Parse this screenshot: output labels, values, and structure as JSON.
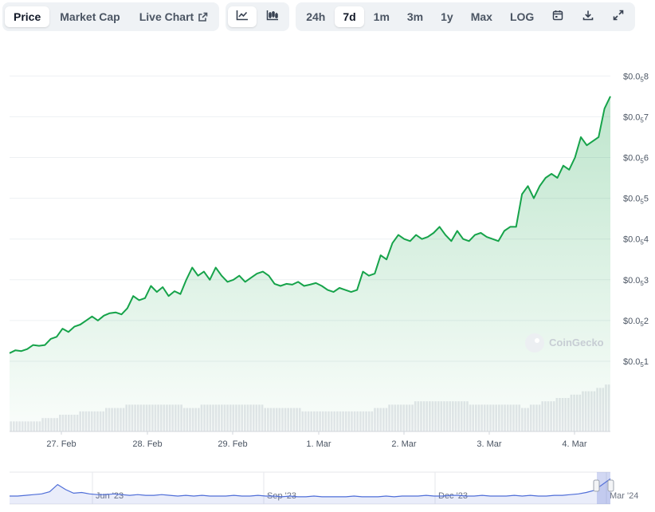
{
  "toolbar": {
    "view_tabs": [
      {
        "label": "Price",
        "active": true
      },
      {
        "label": "Market Cap",
        "active": false
      },
      {
        "label": "Live Chart",
        "active": false
      }
    ],
    "chart_style_icons": [
      "line-chart-icon",
      "candlestick-chart-icon"
    ],
    "ranges": [
      {
        "label": "24h",
        "active": false
      },
      {
        "label": "7d",
        "active": true
      },
      {
        "label": "1m",
        "active": false
      },
      {
        "label": "3m",
        "active": false
      },
      {
        "label": "1y",
        "active": false
      },
      {
        "label": "Max",
        "active": false
      },
      {
        "label": "LOG",
        "active": false
      }
    ],
    "action_icons": [
      "calendar-icon",
      "download-icon",
      "expand-icon"
    ]
  },
  "watermark": "CoinGecko",
  "colors": {
    "line": "#16a34a",
    "area": "#16a34a",
    "volume": "#e5e7eb",
    "navigator": "#4f6ed8"
  },
  "chart_data": {
    "type": "line",
    "title": "",
    "xlabel": "",
    "ylabel": "",
    "y_tick_labels": [
      {
        "prefix": "$0.0",
        "sub": "5",
        "digit": "8",
        "value": 8e-07
      },
      {
        "prefix": "$0.0",
        "sub": "5",
        "digit": "7",
        "value": 7e-07
      },
      {
        "prefix": "$0.0",
        "sub": "5",
        "digit": "6",
        "value": 6e-07
      },
      {
        "prefix": "$0.0",
        "sub": "5",
        "digit": "5",
        "value": 5e-07
      },
      {
        "prefix": "$0.0",
        "sub": "5",
        "digit": "4",
        "value": 4e-07
      },
      {
        "prefix": "$0.0",
        "sub": "5",
        "digit": "3",
        "value": 3e-07
      },
      {
        "prefix": "$0.0",
        "sub": "5",
        "digit": "2",
        "value": 2e-07
      },
      {
        "prefix": "$0.0",
        "sub": "5",
        "digit": "1",
        "value": 1e-07
      }
    ],
    "x_tick_labels": [
      "27. Feb",
      "28. Feb",
      "29. Feb",
      "1. Mar",
      "2. Mar",
      "3. Mar",
      "4. Mar"
    ],
    "x_start": "26. Feb",
    "x_end": "4. Mar",
    "ylim": [
      1e-07,
      8e-07
    ],
    "grid": true,
    "price_series": [
      1.2,
      1.27,
      1.25,
      1.3,
      1.4,
      1.38,
      1.4,
      1.55,
      1.6,
      1.8,
      1.72,
      1.85,
      1.9,
      2.0,
      2.1,
      2.0,
      2.12,
      2.18,
      2.2,
      2.15,
      2.3,
      2.6,
      2.5,
      2.55,
      2.85,
      2.7,
      2.82,
      2.6,
      2.72,
      2.65,
      3.0,
      3.3,
      3.1,
      3.2,
      3.0,
      3.3,
      3.1,
      2.95,
      3.0,
      3.1,
      2.95,
      3.05,
      3.15,
      3.2,
      3.1,
      2.9,
      2.85,
      2.9,
      2.88,
      2.95,
      2.85,
      2.88,
      2.92,
      2.85,
      2.75,
      2.7,
      2.8,
      2.75,
      2.7,
      2.75,
      3.2,
      3.1,
      3.15,
      3.6,
      3.5,
      3.9,
      4.1,
      4.0,
      3.95,
      4.1,
      4.0,
      4.05,
      4.15,
      4.3,
      4.1,
      3.95,
      4.2,
      4.0,
      3.95,
      4.1,
      4.15,
      4.05,
      4.0,
      3.95,
      4.2,
      4.3,
      4.3,
      5.1,
      5.3,
      5.0,
      5.3,
      5.5,
      5.6,
      5.5,
      5.8,
      5.7,
      6.0,
      6.5,
      6.3,
      6.4,
      6.5,
      7.2,
      7.5
    ],
    "volume_series": [
      3,
      3,
      3,
      3,
      3,
      3,
      3,
      3,
      3,
      3,
      3,
      4,
      4,
      4,
      4,
      4,
      4,
      5,
      5,
      5,
      5,
      5,
      5,
      5,
      6,
      6,
      6,
      6,
      6,
      6,
      6,
      6,
      6,
      7,
      7,
      7,
      7,
      7,
      7,
      7,
      8,
      8,
      8,
      8,
      8,
      8,
      8,
      8,
      8,
      8,
      8,
      8,
      8,
      8,
      8,
      8,
      8,
      8,
      8,
      8,
      7,
      7,
      7,
      7,
      7,
      7,
      8,
      8,
      8,
      8,
      8,
      8,
      8,
      8,
      8,
      8,
      8,
      8,
      8,
      8,
      8,
      8,
      8,
      8,
      8,
      8,
      8,
      8,
      7,
      7,
      7,
      7,
      7,
      7,
      7,
      7,
      7,
      7,
      7,
      7,
      7,
      6,
      6,
      6,
      6,
      6,
      6,
      6,
      6,
      6,
      6,
      6,
      6,
      6,
      6,
      6,
      6,
      6,
      6,
      6,
      6,
      6,
      6,
      6,
      6,
      6,
      7,
      7,
      7,
      7,
      7,
      8,
      8,
      8,
      8,
      8,
      8,
      8,
      8,
      8,
      9,
      9,
      9,
      9,
      9,
      9,
      9,
      9,
      9,
      9,
      9,
      9,
      9,
      9,
      9,
      9,
      9,
      9,
      9,
      8,
      8,
      8,
      8,
      8,
      8,
      8,
      8,
      8,
      8,
      8,
      8,
      8,
      8,
      8,
      8,
      8,
      8,
      7,
      7,
      7,
      8,
      8,
      8,
      8,
      9,
      9,
      9,
      9,
      9,
      10,
      10,
      10,
      10,
      10,
      11,
      11,
      11,
      11,
      12,
      12,
      12,
      12,
      12,
      13,
      13,
      13,
      14,
      14
    ],
    "navigator": {
      "x_tick_labels": [
        "Jun '23",
        "Sep '23",
        "Dec '23",
        "Mar '24"
      ],
      "series": [
        1.0,
        1.0,
        1.1,
        1.2,
        1.3,
        1.6,
        2.6,
        1.9,
        1.4,
        1.5,
        1.3,
        1.2,
        1.2,
        1.3,
        1.2,
        1.1,
        1.2,
        1.1,
        1.1,
        1.2,
        1.1,
        1.0,
        1.1,
        1.0,
        1.1,
        1.0,
        1.0,
        1.0,
        1.1,
        1.0,
        1.0,
        1.1,
        1.0,
        1.0,
        0.9,
        1.0,
        0.9,
        0.9,
        1.0,
        0.9,
        0.9,
        0.9,
        0.9,
        1.0,
        0.9,
        0.9,
        0.9,
        1.0,
        0.9,
        1.0,
        1.0,
        1.0,
        1.1,
        1.0,
        1.0,
        1.1,
        1.1,
        1.0,
        1.0,
        1.1,
        1.0,
        1.0,
        1.0,
        1.1,
        1.0,
        1.1,
        1.0,
        1.0,
        1.1,
        1.1,
        1.2,
        1.3,
        1.5,
        1.8,
        2.6,
        3.4
      ]
    }
  }
}
